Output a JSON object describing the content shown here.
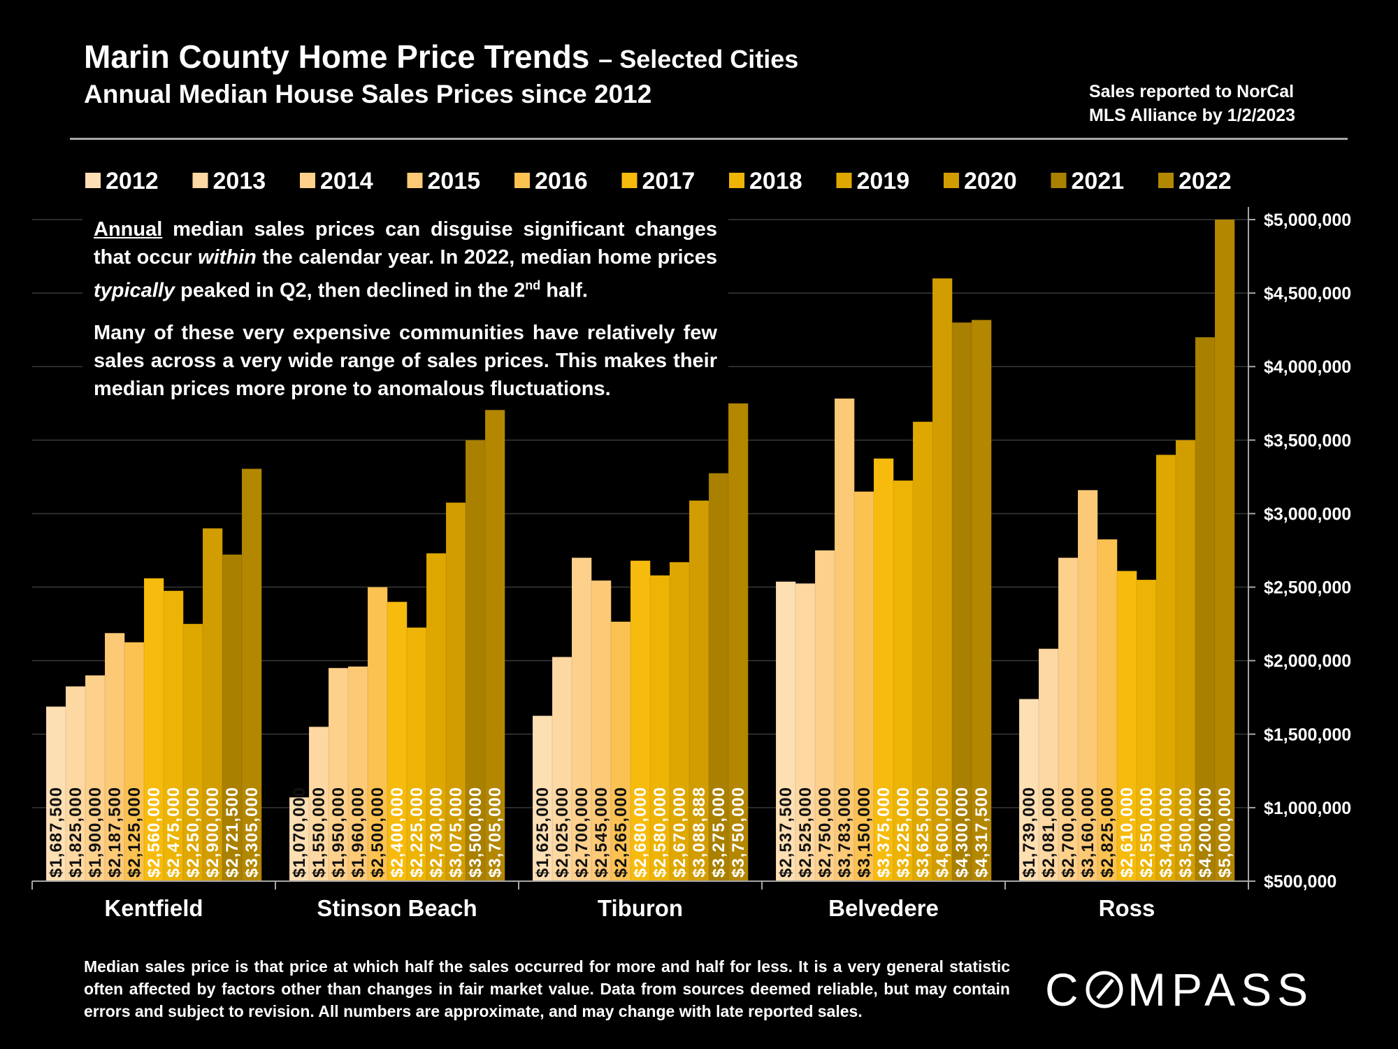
{
  "header": {
    "title": "Marin County Home Price Trends",
    "title_suffix": "– Selected Cities",
    "subtitle": "Annual Median House Sales Prices since 2012",
    "source_line1": "Sales reported to NorCal",
    "source_line2": "MLS Alliance by 1/2/2023"
  },
  "note": {
    "p1_underlined": "Annual",
    "p1_a": " median sales prices can disguise significant changes that occur ",
    "p1_italic": "within",
    "p1_b": " the calendar year. In 2022, median home prices ",
    "p1_italic2": "typically",
    "p1_c": " peaked in Q2, then declined in the 2",
    "p1_sup": "nd",
    "p1_d": " half.",
    "p2": "Many of these very expensive communities have relatively few sales across a very wide range of sales prices. This makes their median prices more prone to anomalous fluctuations."
  },
  "footer": "Median sales price is that price at which half the sales occurred for more and half for less. It is a very general statistic often affected by factors other than changes in fair market value. Data from sources deemed reliable, but may contain errors and subject to revision. All numbers are approximate, and may change with late reported sales.",
  "logo": "COMPASS",
  "chart_data": {
    "type": "bar",
    "title": "Marin County Home Price Trends – Selected Cities",
    "xlabel": "",
    "ylabel": "",
    "ylim": [
      500000,
      5000000
    ],
    "yticks": [
      500000,
      1000000,
      1500000,
      2000000,
      2500000,
      3000000,
      3500000,
      4000000,
      4500000,
      5000000
    ],
    "ytick_labels": [
      "$500,000",
      "$1,000,000",
      "$1,500,000",
      "$2,000,000",
      "$2,500,000",
      "$3,000,000",
      "$3,500,000",
      "$4,000,000",
      "$4,500,000",
      "$5,000,000"
    ],
    "y_axis_side": "right",
    "grid": true,
    "legend_position": "top",
    "categories": [
      "Kentfield",
      "Stinson Beach",
      "Tiburon",
      "Belvedere",
      "Ross"
    ],
    "series": [
      {
        "name": "2012",
        "color": "#FDDFB4",
        "label_color": "#111111",
        "values": [
          1687500,
          1070000,
          1625000,
          2537500,
          1739000
        ]
      },
      {
        "name": "2013",
        "color": "#FDD8A2",
        "label_color": "#111111",
        "values": [
          1825000,
          1550000,
          2025000,
          2525000,
          2081000
        ]
      },
      {
        "name": "2014",
        "color": "#FDD08C",
        "label_color": "#111111",
        "values": [
          1900000,
          1950000,
          2700000,
          2750000,
          2700000
        ]
      },
      {
        "name": "2015",
        "color": "#FCC977",
        "label_color": "#111111",
        "values": [
          2187500,
          1960000,
          2545000,
          3783000,
          3160000
        ]
      },
      {
        "name": "2016",
        "color": "#FBC252",
        "label_color": "#111111",
        "values": [
          2125000,
          2500000,
          2265000,
          3150000,
          2825000
        ]
      },
      {
        "name": "2017",
        "color": "#F7BB0E",
        "label_color": "#ffffff",
        "values": [
          2560000,
          2400000,
          2680000,
          3375000,
          2610000
        ]
      },
      {
        "name": "2018",
        "color": "#EDB405",
        "label_color": "#ffffff",
        "values": [
          2475000,
          2225000,
          2580000,
          3225000,
          2550000
        ]
      },
      {
        "name": "2019",
        "color": "#DFA800",
        "label_color": "#ffffff",
        "values": [
          2250000,
          2730000,
          2670000,
          3625000,
          3400000
        ]
      },
      {
        "name": "2020",
        "color": "#D29D00",
        "label_color": "#ffffff",
        "values": [
          2900000,
          3075000,
          3088888,
          4600000,
          3500000
        ]
      },
      {
        "name": "2021",
        "color": "#A98000",
        "label_color": "#ffffff",
        "values": [
          2721500,
          3500000,
          3275000,
          4300000,
          4200000
        ]
      },
      {
        "name": "2022",
        "color": "#B48700",
        "label_color": "#ffffff",
        "values": [
          3305000,
          3705000,
          3750000,
          4317500,
          5000000
        ]
      }
    ],
    "data_labels": [
      [
        "$1,687,500",
        "$1,070,000",
        "$1,625,000",
        "$2,537,500",
        "$1,739,000"
      ],
      [
        "$1,825,000",
        "$1,550,000",
        "$2,025,000",
        "$2,525,000",
        "$2,081,000"
      ],
      [
        "$1,900,000",
        "$1,950,000",
        "$2,700,000",
        "$2,750,000",
        "$2,700,000"
      ],
      [
        "$2,187,500",
        "$1,960,000",
        "$2,545,000",
        "$3,783,000",
        "$3,160,000"
      ],
      [
        "$2,125,000",
        "$2,500,000",
        "$2,265,000",
        "$3,150,000",
        "$2,825,000"
      ],
      [
        "$2,560,000",
        "$2,400,000",
        "$2,680,000",
        "$3,375,000",
        "$2,610,000"
      ],
      [
        "$2,475,000",
        "$2,225,000",
        "$2,580,000",
        "$3,225,000",
        "$2,550,000"
      ],
      [
        "$2,250,000",
        "$2,730,000",
        "$2,670,000",
        "$3,625,000",
        "$3,400,000"
      ],
      [
        "$2,900,000",
        "$3,075,000",
        "$3,088,888",
        "$4,600,000",
        "$3,500,000"
      ],
      [
        "$2,721,500",
        "$3,500,000",
        "$3,275,000",
        "$4,300,000",
        "$4,200,000"
      ],
      [
        "$3,305,000",
        "$3,705,000",
        "$3,750,000",
        "$4,317,500",
        "$5,000,000"
      ]
    ]
  }
}
